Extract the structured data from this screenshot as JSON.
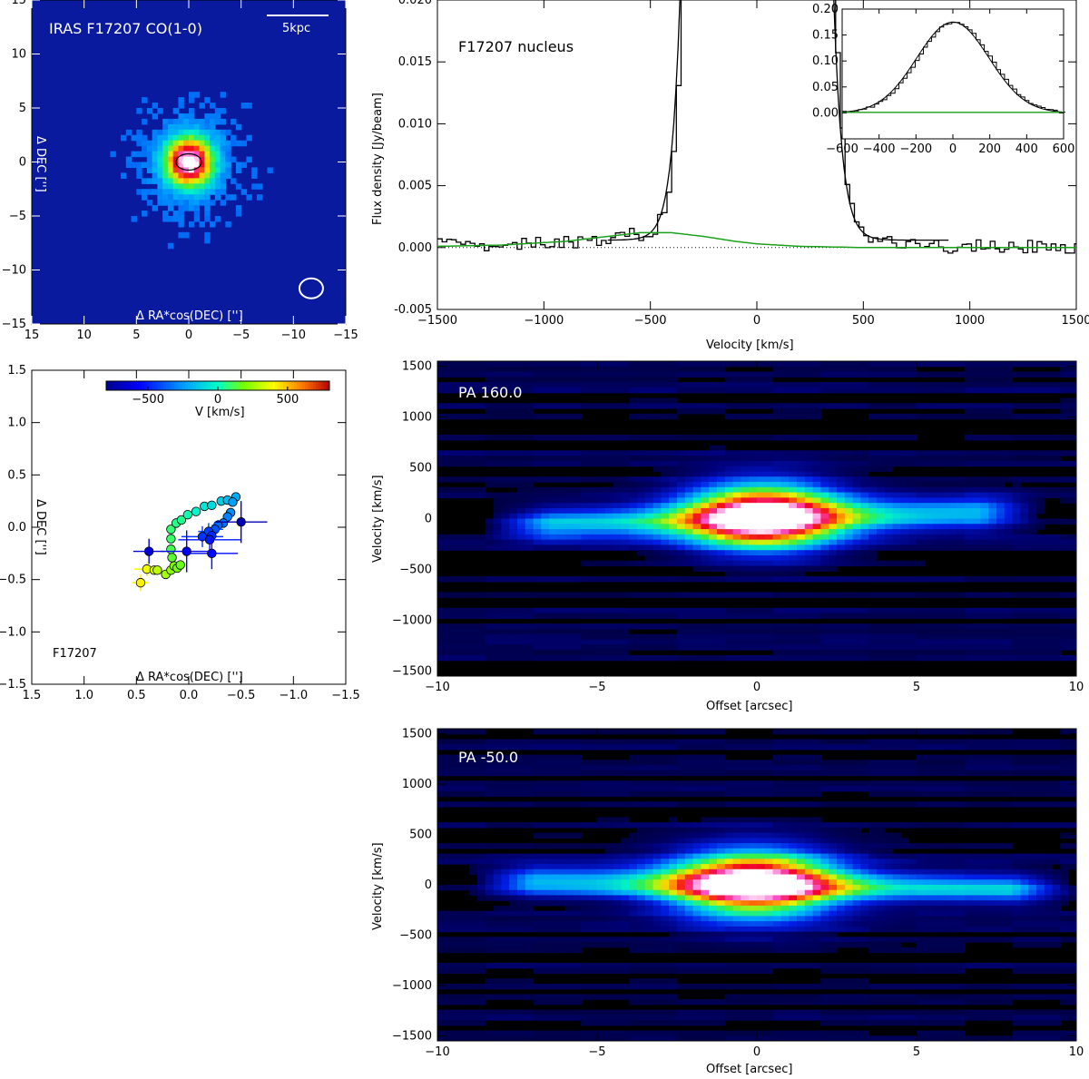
{
  "colors": {
    "map_background": "#0a1a9e",
    "pv_background": "#000000",
    "fit_line": "#1aa11a",
    "data_line": "#000000"
  },
  "chart_data": [
    {
      "id": "co-map",
      "type": "heatmap",
      "title": "IRAS F17207 CO(1-0)",
      "scalebar_label": "5kpc",
      "xlabel": "Δ RA*cos(DEC) ['']",
      "ylabel": "Δ DEC ['']",
      "xlim": [
        15,
        -15
      ],
      "ylim": [
        -15,
        15
      ],
      "x_ticks": [
        15,
        10,
        5,
        0,
        -5,
        -10,
        -15
      ],
      "y_ticks": [
        15,
        10,
        5,
        0,
        -5,
        -10,
        -15
      ],
      "emission_peak": {
        "x": 0,
        "y": 0
      },
      "beam": {
        "x": -11.7,
        "y": -11.7
      }
    },
    {
      "id": "spectrum",
      "type": "line",
      "annotation": "F17207 nucleus",
      "xlabel": "Velocity [km/s]",
      "ylabel": "Flux density [Jy/beam]",
      "xlim": [
        -1500,
        1500
      ],
      "ylim": [
        -0.005,
        0.02
      ],
      "x_ticks": [
        -1500,
        -1000,
        -500,
        0,
        500,
        1000,
        1500
      ],
      "y_ticks": [
        -0.005,
        0.0,
        0.005,
        0.01,
        0.015,
        0.02
      ],
      "y_tick_labels": [
        "-0.005",
        "0.000",
        "0.005",
        "0.010",
        "0.015",
        "0.020"
      ],
      "series": [
        {
          "role": "data",
          "x": [
            -1500,
            -1300,
            -1100,
            -900,
            -700,
            -500,
            -420,
            -380,
            -360,
            360,
            380,
            420,
            500,
            700,
            900,
            1100,
            1300,
            1500
          ],
          "y": [
            0.0002,
            0.0001,
            0.0003,
            0.0004,
            0.0008,
            0.0012,
            0.004,
            0.012,
            0.02,
            0.02,
            0.012,
            0.004,
            0.0005,
            0.0002,
            0.0001,
            0.0002,
            0.0001,
            0.0001
          ]
        },
        {
          "role": "broad-component-fit",
          "x": [
            -1500,
            -1200,
            -900,
            -700,
            -550,
            -400,
            -250,
            -100,
            0,
            200,
            500,
            1000,
            1500
          ],
          "y": [
            0.0001,
            0.0002,
            0.0005,
            0.0009,
            0.0012,
            0.0012,
            0.0009,
            0.0005,
            0.0003,
            0.0001,
            0.0,
            0.0,
            0.0
          ]
        }
      ],
      "inset": {
        "xlim": [
          -600,
          600
        ],
        "ylim": [
          -0.05,
          0.2
        ],
        "x_ticks": [
          -600,
          -400,
          -200,
          0,
          200,
          400,
          600
        ],
        "y_ticks": [
          0.0,
          0.05,
          0.1,
          0.15,
          0.2
        ],
        "y_tick_labels": [
          "0.00",
          "0.05",
          "0.10",
          "0.15",
          "0.20"
        ],
        "peak": {
          "x": 0,
          "y": 0.175
        },
        "fwhm_kms": 460
      }
    },
    {
      "id": "centroids",
      "type": "scatter",
      "annotation": "F17207",
      "xlabel": "Δ RA*cos(DEC) ['']",
      "ylabel": "Δ DEC ['']",
      "xlim": [
        1.5,
        -1.5
      ],
      "ylim": [
        -1.5,
        1.5
      ],
      "x_ticks": [
        1.5,
        1.0,
        0.5,
        0.0,
        -0.5,
        -1.0,
        -1.5
      ],
      "x_tick_labels": [
        "1.5",
        "1.0",
        "0.5",
        "0.0",
        "-0.5",
        "-1.0",
        "-1.5"
      ],
      "y_ticks": [
        -1.5,
        -1.0,
        -0.5,
        0.0,
        0.5,
        1.0,
        1.5
      ],
      "y_tick_labels": [
        "-1.5",
        "-1.0",
        "-0.5",
        "0.0",
        "0.5",
        "1.0",
        "1.5"
      ],
      "colorbar": {
        "label": "V [km/s]",
        "range": [
          -800,
          800
        ],
        "ticks": [
          -500,
          0,
          500
        ]
      },
      "points": [
        {
          "x": 0.46,
          "y": -0.53,
          "v": 420,
          "ex": 0.08,
          "ey": 0.08
        },
        {
          "x": 0.4,
          "y": -0.4,
          "v": 380,
          "ex": 0.12,
          "ey": 0.07
        },
        {
          "x": 0.33,
          "y": -0.41,
          "v": 330,
          "ex": 0.0,
          "ey": 0.0
        },
        {
          "x": 0.3,
          "y": -0.41,
          "v": 300,
          "ex": 0.0,
          "ey": 0.0
        },
        {
          "x": 0.22,
          "y": -0.45,
          "v": 260,
          "ex": 0.0,
          "ey": 0.0
        },
        {
          "x": 0.17,
          "y": -0.41,
          "v": 230,
          "ex": 0.0,
          "ey": 0.0
        },
        {
          "x": 0.14,
          "y": -0.37,
          "v": 200,
          "ex": 0.0,
          "ey": 0.0
        },
        {
          "x": 0.11,
          "y": -0.39,
          "v": 190,
          "ex": 0.0,
          "ey": 0.0
        },
        {
          "x": 0.08,
          "y": -0.36,
          "v": 170,
          "ex": 0.0,
          "ey": 0.0
        },
        {
          "x": 0.16,
          "y": -0.29,
          "v": 140,
          "ex": 0.0,
          "ey": 0.0
        },
        {
          "x": 0.17,
          "y": -0.21,
          "v": 110,
          "ex": 0.0,
          "ey": 0.0
        },
        {
          "x": 0.17,
          "y": -0.11,
          "v": 90,
          "ex": 0.0,
          "ey": 0.0
        },
        {
          "x": 0.17,
          "y": -0.02,
          "v": 80,
          "ex": 0.0,
          "ey": 0.0
        },
        {
          "x": 0.12,
          "y": 0.04,
          "v": 60,
          "ex": 0.0,
          "ey": 0.0
        },
        {
          "x": 0.07,
          "y": 0.07,
          "v": 50,
          "ex": 0.0,
          "ey": 0.0
        },
        {
          "x": 0.01,
          "y": 0.12,
          "v": 20,
          "ex": 0.0,
          "ey": 0.0
        },
        {
          "x": -0.07,
          "y": 0.15,
          "v": -20,
          "ex": 0.0,
          "ey": 0.0
        },
        {
          "x": -0.15,
          "y": 0.2,
          "v": -60,
          "ex": 0.0,
          "ey": 0.0
        },
        {
          "x": -0.22,
          "y": 0.21,
          "v": -90,
          "ex": 0.0,
          "ey": 0.0
        },
        {
          "x": -0.31,
          "y": 0.25,
          "v": -130,
          "ex": 0.0,
          "ey": 0.0
        },
        {
          "x": -0.37,
          "y": 0.26,
          "v": -170,
          "ex": 0.0,
          "ey": 0.0
        },
        {
          "x": -0.45,
          "y": 0.29,
          "v": -210,
          "ex": 0.0,
          "ey": 0.0
        },
        {
          "x": -0.42,
          "y": 0.24,
          "v": -240,
          "ex": 0.0,
          "ey": 0.0
        },
        {
          "x": -0.4,
          "y": 0.14,
          "v": -270,
          "ex": 0.0,
          "ey": 0.0
        },
        {
          "x": -0.37,
          "y": 0.1,
          "v": -300,
          "ex": 0.0,
          "ey": 0.0
        },
        {
          "x": -0.33,
          "y": 0.04,
          "v": -330,
          "ex": 0.0,
          "ey": 0.0
        },
        {
          "x": -0.28,
          "y": 0.02,
          "v": -360,
          "ex": 0.06,
          "ey": 0.05
        },
        {
          "x": -0.25,
          "y": -0.02,
          "v": -390,
          "ex": 0.08,
          "ey": 0.07
        },
        {
          "x": -0.19,
          "y": -0.04,
          "v": -420,
          "ex": 0.1,
          "ey": 0.08
        },
        {
          "x": -0.13,
          "y": -0.09,
          "v": -450,
          "ex": 0.2,
          "ey": 0.1
        },
        {
          "x": -0.22,
          "y": -0.08,
          "v": -480,
          "ex": 0.0,
          "ey": 0.0
        },
        {
          "x": -0.2,
          "y": -0.12,
          "v": -510,
          "ex": 0.3,
          "ey": 0.1
        },
        {
          "x": -0.22,
          "y": -0.25,
          "v": -540,
          "ex": 0.25,
          "ey": 0.15
        },
        {
          "x": 0.02,
          "y": -0.23,
          "v": -580,
          "ex": 0.25,
          "ey": 0.2
        },
        {
          "x": 0.38,
          "y": -0.23,
          "v": -640,
          "ex": 0.15,
          "ey": 0.12
        },
        {
          "x": -0.5,
          "y": 0.05,
          "v": -720,
          "ex": 0.25,
          "ey": 0.2
        }
      ]
    },
    {
      "id": "pv-160",
      "type": "heatmap",
      "annotation": "PA   160.0",
      "xlabel": "Offset [arcsec]",
      "ylabel": "Velocity [km/s]",
      "xlim": [
        -10,
        10
      ],
      "ylim": [
        -1550,
        1550
      ],
      "x_ticks": [
        -10,
        -5,
        0,
        5,
        10
      ],
      "y_ticks": [
        -1500,
        -1000,
        -500,
        0,
        500,
        1000,
        1500
      ],
      "core": {
        "x": 0.2,
        "v": 20,
        "sx": 1.7,
        "sv": 230
      },
      "tail": {
        "x_from": -8.5,
        "x_to": 9.0,
        "v_slope": 8,
        "sv": 110
      }
    },
    {
      "id": "pv-m50",
      "type": "heatmap",
      "annotation": "PA   -50.0",
      "xlabel": "Offset [arcsec]",
      "ylabel": "Velocity [km/s]",
      "xlim": [
        -10,
        10
      ],
      "ylim": [
        -1550,
        1550
      ],
      "x_ticks": [
        -10,
        -5,
        0,
        5,
        10
      ],
      "y_ticks": [
        -1500,
        -1000,
        -500,
        0,
        500,
        1000,
        1500
      ],
      "core": {
        "x": -0.1,
        "v": 10,
        "sx": 1.8,
        "sv": 230
      },
      "tail": {
        "x_from": -9.0,
        "x_to": 10.0,
        "v_slope": -5,
        "sv": 105
      }
    }
  ]
}
